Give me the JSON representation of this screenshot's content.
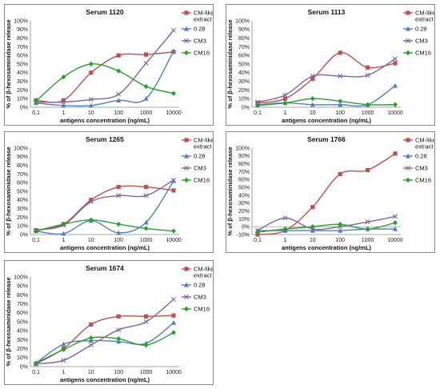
{
  "chart_data": [
    {
      "type": "line",
      "title": "Serum 1120",
      "xlabel": "antigens concentration (ng/mL)",
      "ylabel": "% of β-hexosaminidase release",
      "categories": [
        "0,1",
        "1",
        "10",
        "100",
        "1000",
        "10000"
      ],
      "y_ticks": [
        "0%",
        "10%",
        "20%",
        "30%",
        "40%",
        "50%",
        "60%",
        "70%",
        "80%",
        "90%",
        "100%"
      ],
      "ylim": [
        0,
        100
      ],
      "legend_position": "right",
      "series": [
        {
          "name": "CM-like extract",
          "color": "#c0504d",
          "marker": "square",
          "values": [
            8,
            8,
            40,
            60,
            61,
            64
          ]
        },
        {
          "name": "0.28",
          "color": "#4f81bd",
          "marker": "triangle",
          "values": [
            5,
            2,
            2,
            8,
            10,
            65
          ]
        },
        {
          "name": "CM3",
          "color": "#8064a2",
          "marker": "x",
          "values": [
            6,
            6,
            9,
            15,
            51,
            89
          ]
        },
        {
          "name": "CM16",
          "color": "#2ca02c",
          "marker": "diamond",
          "values": [
            7,
            35,
            50,
            42,
            24,
            16
          ]
        }
      ]
    },
    {
      "type": "line",
      "title": "Serum 1113",
      "xlabel": "antigens concentration (ng/mL)",
      "ylabel": "% of β-hexosaminidase release",
      "categories": [
        "0,1",
        "1",
        "10",
        "100",
        "1000",
        "10000"
      ],
      "y_ticks": [
        "0%",
        "10%",
        "20%",
        "30%",
        "40%",
        "50%",
        "60%",
        "70%",
        "80%",
        "90%",
        "100%"
      ],
      "ylim": [
        0,
        100
      ],
      "legend_position": "right",
      "series": [
        {
          "name": "CM-like extract",
          "color": "#c0504d",
          "marker": "square",
          "values": [
            5,
            10,
            33,
            63,
            46,
            51
          ]
        },
        {
          "name": "0.28",
          "color": "#4f81bd",
          "marker": "triangle",
          "values": [
            3,
            5,
            3,
            3,
            3,
            25
          ]
        },
        {
          "name": "CM3",
          "color": "#8064a2",
          "marker": "x",
          "values": [
            6,
            14,
            36,
            36,
            37,
            56
          ]
        },
        {
          "name": "CM16",
          "color": "#2ca02c",
          "marker": "diamond",
          "values": [
            2,
            5,
            10,
            7,
            3,
            3
          ]
        }
      ]
    },
    {
      "type": "line",
      "title": "Serum 1265",
      "xlabel": "antigens concentration (ng/mL)",
      "ylabel": "% of β-hexosaminidase release",
      "categories": [
        "0,1",
        "1",
        "10",
        "100",
        "1000",
        "10000"
      ],
      "y_ticks": [
        "0%",
        "10%",
        "20%",
        "30%",
        "40%",
        "50%",
        "60%",
        "70%",
        "80%",
        "90%",
        "100%"
      ],
      "ylim": [
        0,
        100
      ],
      "legend_position": "right",
      "series": [
        {
          "name": "CM-like extract",
          "color": "#c0504d",
          "marker": "square",
          "values": [
            5,
            12,
            40,
            55,
            55,
            51
          ]
        },
        {
          "name": "0.28",
          "color": "#4f81bd",
          "marker": "triangle",
          "values": [
            4,
            1,
            16,
            2,
            14,
            62
          ]
        },
        {
          "name": "CM3",
          "color": "#8064a2",
          "marker": "x",
          "values": [
            5,
            11,
            38,
            45,
            45,
            63
          ]
        },
        {
          "name": "CM16",
          "color": "#2ca02c",
          "marker": "diamond",
          "values": [
            4,
            12,
            17,
            12,
            7,
            4
          ]
        }
      ]
    },
    {
      "type": "line",
      "title": "Serum 1766",
      "xlabel": "antigens concentration (ng/mL)",
      "ylabel": "% of β-hexosaminidase release",
      "categories": [
        "0,1",
        "1",
        "10",
        "100",
        "1000",
        "10000"
      ],
      "y_ticks": [
        "-10%",
        "0%",
        "10%",
        "20%",
        "30%",
        "40%",
        "50%",
        "60%",
        "70%",
        "80%",
        "90%",
        "100%"
      ],
      "ylim": [
        -10,
        100
      ],
      "legend_position": "right",
      "series": [
        {
          "name": "CM-like extract",
          "color": "#c0504d",
          "marker": "square",
          "values": [
            -10,
            -5,
            25,
            67,
            72,
            93
          ]
        },
        {
          "name": "0.28",
          "color": "#4f81bd",
          "marker": "triangle",
          "values": [
            -5,
            -5,
            -5,
            -5,
            -3,
            -3
          ]
        },
        {
          "name": "CM3",
          "color": "#8064a2",
          "marker": "x",
          "values": [
            -5,
            11,
            -3,
            0,
            6,
            13
          ]
        },
        {
          "name": "CM16",
          "color": "#2ca02c",
          "marker": "diamond",
          "values": [
            -7,
            -3,
            0,
            3,
            -3,
            5
          ]
        }
      ]
    },
    {
      "type": "line",
      "title": "Serum 1674",
      "xlabel": "antigens concentration (ng/mL)",
      "ylabel": "% of β-hexosaminidase release",
      "categories": [
        "0,1",
        "1",
        "10",
        "100",
        "1000",
        "10000"
      ],
      "y_ticks": [
        "0%",
        "10%",
        "20%",
        "30%",
        "40%",
        "50%",
        "60%",
        "70%",
        "80%",
        "90%",
        "100%"
      ],
      "ylim": [
        0,
        100
      ],
      "legend_position": "right",
      "series": [
        {
          "name": "CM-like extract",
          "color": "#c0504d",
          "marker": "square",
          "values": [
            3,
            20,
            47,
            56,
            56,
            57
          ]
        },
        {
          "name": "0.28",
          "color": "#4f81bd",
          "marker": "triangle",
          "values": [
            4,
            25,
            29,
            28,
            26,
            49
          ]
        },
        {
          "name": "CM3",
          "color": "#8064a2",
          "marker": "x",
          "values": [
            3,
            7,
            24,
            41,
            50,
            75
          ]
        },
        {
          "name": "CM16",
          "color": "#2ca02c",
          "marker": "diamond",
          "values": [
            4,
            19,
            32,
            31,
            24,
            38
          ]
        }
      ]
    }
  ]
}
